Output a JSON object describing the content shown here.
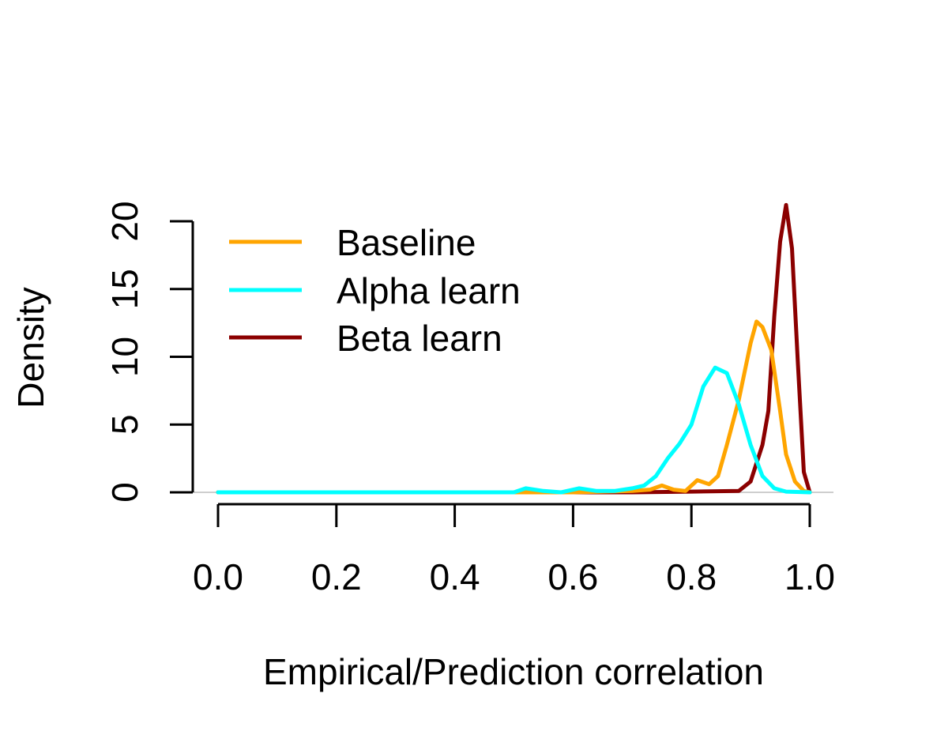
{
  "chart_data": {
    "type": "line",
    "xlabel": "Empirical/Prediction correlation",
    "ylabel": "Density",
    "xlim": [
      0,
      1
    ],
    "ylim": [
      0,
      20
    ],
    "x_ticks": [
      "0.0",
      "0.2",
      "0.4",
      "0.6",
      "0.8",
      "1.0"
    ],
    "y_ticks": [
      "0",
      "5",
      "10",
      "15",
      "20"
    ],
    "grid": false,
    "legend_position": "top-left",
    "legend": [
      "Baseline",
      "Alpha learn",
      "Beta learn"
    ],
    "series": [
      {
        "name": "Baseline",
        "color": "#FFA500",
        "x": [
          0.0,
          0.5,
          0.6,
          0.7,
          0.73,
          0.75,
          0.77,
          0.79,
          0.81,
          0.83,
          0.845,
          0.86,
          0.88,
          0.9,
          0.91,
          0.92,
          0.935,
          0.95,
          0.96,
          0.975,
          0.99,
          1.0
        ],
        "y": [
          0,
          0,
          0,
          0.1,
          0.2,
          0.5,
          0.2,
          0.1,
          0.9,
          0.6,
          1.2,
          3.5,
          6.8,
          11.0,
          12.6,
          12.2,
          10.5,
          6.0,
          2.8,
          0.8,
          0.1,
          0
        ]
      },
      {
        "name": "Alpha learn",
        "color": "#00FFFF",
        "x": [
          0.0,
          0.5,
          0.52,
          0.55,
          0.58,
          0.61,
          0.64,
          0.67,
          0.7,
          0.72,
          0.74,
          0.76,
          0.78,
          0.8,
          0.82,
          0.84,
          0.86,
          0.88,
          0.9,
          0.92,
          0.94,
          0.96,
          1.0
        ],
        "y": [
          0,
          0,
          0.3,
          0.1,
          0,
          0.3,
          0.1,
          0.1,
          0.3,
          0.5,
          1.2,
          2.5,
          3.6,
          5.0,
          7.8,
          9.2,
          8.8,
          6.5,
          3.5,
          1.2,
          0.3,
          0.05,
          0
        ]
      },
      {
        "name": "Beta learn",
        "color": "#8B0000",
        "x": [
          0.0,
          0.7,
          0.8,
          0.88,
          0.9,
          0.92,
          0.93,
          0.94,
          0.95,
          0.96,
          0.97,
          0.98,
          0.99,
          1.0
        ],
        "y": [
          0,
          0,
          0.05,
          0.1,
          0.8,
          3.5,
          6.0,
          13.0,
          18.5,
          21.2,
          18.0,
          9.5,
          1.5,
          0
        ]
      }
    ]
  }
}
